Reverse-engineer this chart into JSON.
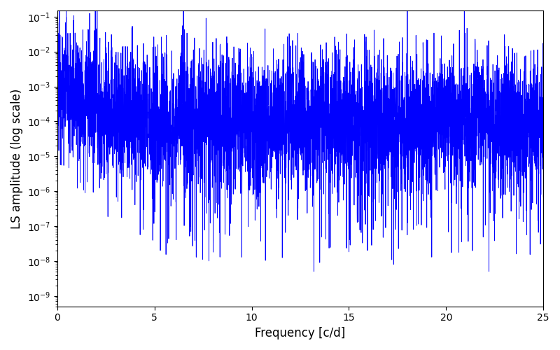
{
  "xlabel": "Frequency [c/d]",
  "ylabel": "LS amplitude (log scale)",
  "xlim": [
    0,
    25
  ],
  "ylim": [
    5e-10,
    0.15
  ],
  "line_color": "#0000ff",
  "line_width": 0.6,
  "background_color": "#ffffff",
  "xlabel_fontsize": 12,
  "ylabel_fontsize": 12,
  "tick_fontsize": 10,
  "figsize": [
    8.0,
    5.0
  ],
  "dpi": 100,
  "seed": 12345,
  "n_points": 5000,
  "freq_max": 25.0
}
